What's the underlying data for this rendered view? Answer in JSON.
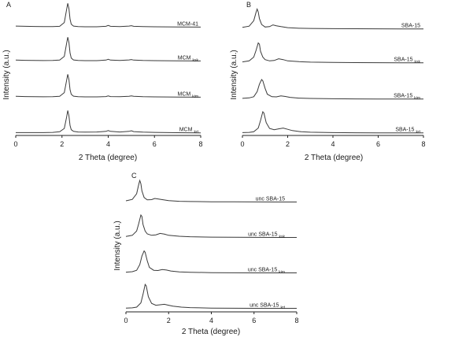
{
  "chart_data": [
    {
      "type": "line",
      "panel_label": "A",
      "xlabel": "2 Theta (degree)",
      "ylabel": "Intensity (a.u.)",
      "xlim": [
        0,
        8
      ],
      "xticks": [
        0,
        2,
        4,
        6,
        8
      ],
      "y_scale": "stacked, arbitrary units",
      "series": [
        {
          "name": "MCM-41",
          "label_main": "MCM-41",
          "label_sub": "",
          "x": [
            0.0,
            0.4,
            0.8,
            1.2,
            1.6,
            1.9,
            2.1,
            2.2,
            2.25,
            2.3,
            2.35,
            2.4,
            2.5,
            2.7,
            3.0,
            3.5,
            3.9,
            4.0,
            4.1,
            4.5,
            4.9,
            5.0,
            5.1,
            5.5,
            6.0,
            7.0,
            8.0
          ],
          "y": [
            0.55,
            0.5,
            0.45,
            0.42,
            0.42,
            0.5,
            1.4,
            4.5,
            6.0,
            4.7,
            2.2,
            1.0,
            0.55,
            0.42,
            0.38,
            0.38,
            0.5,
            0.7,
            0.5,
            0.42,
            0.55,
            0.65,
            0.5,
            0.42,
            0.38,
            0.32,
            0.3
          ]
        },
        {
          "name": "MCM ksk",
          "label_main": "MCM",
          "label_sub": "ksk",
          "x": [
            0.0,
            0.4,
            0.8,
            1.2,
            1.6,
            1.9,
            2.1,
            2.2,
            2.25,
            2.3,
            2.35,
            2.4,
            2.5,
            2.7,
            3.0,
            3.5,
            3.9,
            4.0,
            4.1,
            4.5,
            4.9,
            5.0,
            5.1,
            5.5,
            6.0,
            7.0,
            8.0
          ],
          "y": [
            0.5,
            0.45,
            0.42,
            0.4,
            0.42,
            0.5,
            1.4,
            4.5,
            6.0,
            4.7,
            2.2,
            1.0,
            0.55,
            0.42,
            0.38,
            0.38,
            0.5,
            0.7,
            0.5,
            0.42,
            0.55,
            0.65,
            0.5,
            0.42,
            0.38,
            0.32,
            0.3
          ]
        },
        {
          "name": "MCM kim",
          "label_main": "MCM",
          "label_sub": "kim",
          "x": [
            0.0,
            0.4,
            0.8,
            1.2,
            1.6,
            1.9,
            2.1,
            2.2,
            2.25,
            2.3,
            2.35,
            2.4,
            2.5,
            2.7,
            3.0,
            3.5,
            3.9,
            4.0,
            4.1,
            4.5,
            4.9,
            5.0,
            5.1,
            5.5,
            6.0,
            7.0,
            8.0
          ],
          "y": [
            0.5,
            0.45,
            0.42,
            0.4,
            0.42,
            0.5,
            1.4,
            4.3,
            5.8,
            4.5,
            2.1,
            1.0,
            0.55,
            0.42,
            0.38,
            0.38,
            0.45,
            0.6,
            0.45,
            0.42,
            0.5,
            0.6,
            0.5,
            0.42,
            0.38,
            0.32,
            0.3
          ]
        },
        {
          "name": "MCM krt",
          "label_main": "MCM",
          "label_sub": "krt",
          "x": [
            0.0,
            0.4,
            0.8,
            1.2,
            1.6,
            1.9,
            2.1,
            2.2,
            2.25,
            2.3,
            2.35,
            2.4,
            2.5,
            2.7,
            3.0,
            3.5,
            3.9,
            4.0,
            4.1,
            4.5,
            4.9,
            5.0,
            5.1,
            5.5,
            6.0,
            7.0,
            8.0
          ],
          "y": [
            0.3,
            0.3,
            0.3,
            0.3,
            0.35,
            0.5,
            1.3,
            4.0,
            5.6,
            4.3,
            2.0,
            1.0,
            0.6,
            0.45,
            0.42,
            0.45,
            0.6,
            0.8,
            0.6,
            0.45,
            0.6,
            0.75,
            0.55,
            0.42,
            0.35,
            0.28,
            0.25
          ]
        }
      ]
    },
    {
      "type": "line",
      "panel_label": "B",
      "xlabel": "2 Theta (degree)",
      "ylabel": "Intensity (a.u.)",
      "xlim": [
        0,
        8
      ],
      "xticks": [
        0,
        2,
        4,
        6,
        8
      ],
      "y_scale": "stacked, arbitrary units",
      "series": [
        {
          "name": "SBA-15",
          "label_main": "SBA-15",
          "label_sub": "",
          "x": [
            0.0,
            0.3,
            0.5,
            0.6,
            0.65,
            0.7,
            0.75,
            0.85,
            1.0,
            1.2,
            1.35,
            1.5,
            1.7,
            2.0,
            2.5,
            3.0,
            4.0,
            5.0,
            6.0,
            7.0,
            8.0
          ],
          "y": [
            0.6,
            0.9,
            2.2,
            4.2,
            5.0,
            4.3,
            2.7,
            1.3,
            0.7,
            0.8,
            1.2,
            1.0,
            0.8,
            0.55,
            0.4,
            0.35,
            0.3,
            0.28,
            0.26,
            0.25,
            0.25
          ]
        },
        {
          "name": "SBA-15 ksk",
          "label_main": "SBA-15",
          "label_sub": "ksk",
          "x": [
            0.0,
            0.3,
            0.5,
            0.6,
            0.7,
            0.75,
            0.8,
            0.9,
            1.0,
            1.2,
            1.4,
            1.6,
            1.8,
            2.0,
            2.5,
            3.0,
            4.0,
            5.0,
            6.0,
            7.0,
            8.0
          ],
          "y": [
            0.45,
            0.7,
            1.6,
            3.2,
            5.0,
            4.7,
            3.0,
            1.6,
            1.0,
            0.7,
            0.8,
            1.2,
            1.0,
            0.7,
            0.5,
            0.4,
            0.32,
            0.28,
            0.26,
            0.25,
            0.25
          ]
        },
        {
          "name": "SBA-15 kim",
          "label_main": "SBA-15",
          "label_sub": "kim",
          "x": [
            0.0,
            0.3,
            0.5,
            0.65,
            0.75,
            0.85,
            0.9,
            1.0,
            1.1,
            1.3,
            1.5,
            1.7,
            1.9,
            2.1,
            2.5,
            3.0,
            4.0,
            5.0,
            6.0,
            7.0,
            8.0
          ],
          "y": [
            0.4,
            0.5,
            0.8,
            2.0,
            3.8,
            4.9,
            4.6,
            2.8,
            1.4,
            0.8,
            0.75,
            1.0,
            0.85,
            0.65,
            0.45,
            0.38,
            0.3,
            0.27,
            0.25,
            0.25,
            0.25
          ]
        },
        {
          "name": "SBA-15 krt",
          "label_main": "SBA-15",
          "label_sub": "krt",
          "x": [
            0.0,
            0.3,
            0.5,
            0.7,
            0.8,
            0.9,
            0.95,
            1.05,
            1.2,
            1.4,
            1.6,
            1.8,
            2.0,
            2.2,
            2.6,
            3.0,
            4.0,
            5.0,
            6.0,
            7.0,
            8.0
          ],
          "y": [
            0.3,
            0.35,
            0.5,
            1.4,
            3.2,
            5.3,
            5.0,
            2.7,
            1.3,
            1.0,
            1.2,
            1.4,
            1.1,
            0.8,
            0.5,
            0.4,
            0.3,
            0.27,
            0.25,
            0.25,
            0.25
          ]
        }
      ]
    },
    {
      "type": "line",
      "panel_label": "C",
      "xlabel": "2 Theta (degree)",
      "ylabel": "Intensity (a.u.)",
      "xlim": [
        0,
        8
      ],
      "xticks": [
        0,
        2,
        4,
        6,
        8
      ],
      "y_scale": "stacked, arbitrary units",
      "series": [
        {
          "name": "unc SBA-15",
          "label_main": "unc SBA-15",
          "label_sub": "",
          "x": [
            0.0,
            0.3,
            0.5,
            0.6,
            0.65,
            0.7,
            0.75,
            0.85,
            1.0,
            1.2,
            1.35,
            1.5,
            1.7,
            2.0,
            2.5,
            3.0,
            4.0,
            5.0,
            6.0,
            7.0,
            8.0
          ],
          "y": [
            0.5,
            0.8,
            2.0,
            4.0,
            4.8,
            4.1,
            2.6,
            1.2,
            0.7,
            0.75,
            1.0,
            0.9,
            0.75,
            0.55,
            0.4,
            0.35,
            0.3,
            0.28,
            0.26,
            0.25,
            0.25
          ]
        },
        {
          "name": "unc SBA-15 ksk",
          "label_main": "unc SBA-15",
          "label_sub": "ksk",
          "x": [
            0.0,
            0.3,
            0.5,
            0.6,
            0.7,
            0.75,
            0.8,
            0.9,
            1.0,
            1.2,
            1.4,
            1.6,
            1.8,
            2.0,
            2.5,
            3.0,
            4.0,
            5.0,
            6.0,
            7.0,
            8.0
          ],
          "y": [
            0.45,
            0.7,
            1.6,
            3.2,
            5.0,
            4.7,
            3.0,
            1.6,
            1.0,
            0.7,
            0.8,
            1.1,
            0.95,
            0.7,
            0.5,
            0.4,
            0.32,
            0.28,
            0.26,
            0.25,
            0.25
          ]
        },
        {
          "name": "unc SBA-15 kim",
          "label_main": "unc SBA-15",
          "label_sub": "kim",
          "x": [
            0.0,
            0.3,
            0.5,
            0.65,
            0.75,
            0.85,
            0.9,
            1.0,
            1.1,
            1.3,
            1.5,
            1.7,
            1.9,
            2.1,
            2.5,
            3.0,
            4.0,
            5.0,
            6.0,
            7.0,
            8.0
          ],
          "y": [
            0.4,
            0.5,
            0.8,
            2.0,
            3.8,
            4.9,
            4.6,
            2.8,
            1.4,
            0.8,
            0.75,
            0.95,
            0.85,
            0.65,
            0.45,
            0.38,
            0.3,
            0.27,
            0.25,
            0.25,
            0.25
          ]
        },
        {
          "name": "unc SBA-15 krt",
          "label_main": "unc SBA-15",
          "label_sub": "krt",
          "x": [
            0.0,
            0.3,
            0.5,
            0.7,
            0.8,
            0.9,
            0.95,
            1.05,
            1.2,
            1.4,
            1.6,
            1.8,
            2.0,
            2.2,
            2.6,
            3.0,
            4.0,
            5.0,
            6.0,
            7.0,
            8.0
          ],
          "y": [
            0.3,
            0.35,
            0.5,
            1.4,
            3.2,
            5.3,
            5.0,
            2.7,
            1.3,
            0.9,
            1.0,
            1.1,
            0.9,
            0.7,
            0.5,
            0.4,
            0.3,
            0.27,
            0.25,
            0.25,
            0.25
          ]
        }
      ]
    }
  ]
}
